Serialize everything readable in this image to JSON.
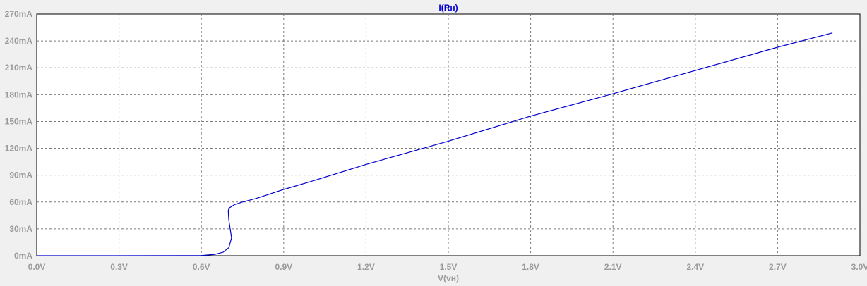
{
  "chart_data": {
    "type": "line",
    "title": "I(Rн)",
    "xlabel": "V(vн)",
    "ylabel": "",
    "xlim": [
      0.0,
      3.0
    ],
    "ylim": [
      0,
      270
    ],
    "grid": true,
    "x_ticks": [
      {
        "value": 0.0,
        "label": "0.0V"
      },
      {
        "value": 0.3,
        "label": "0.3V"
      },
      {
        "value": 0.6,
        "label": "0.6V"
      },
      {
        "value": 0.9,
        "label": "0.9V"
      },
      {
        "value": 1.2,
        "label": "1.2V"
      },
      {
        "value": 1.5,
        "label": "1.5V"
      },
      {
        "value": 1.8,
        "label": "1.8V"
      },
      {
        "value": 2.1,
        "label": "2.1V"
      },
      {
        "value": 2.4,
        "label": "2.4V"
      },
      {
        "value": 2.7,
        "label": "2.7V"
      },
      {
        "value": 3.0,
        "label": "3.0V"
      }
    ],
    "y_ticks": [
      {
        "value": 0,
        "label": "0mA"
      },
      {
        "value": 30,
        "label": "30mA"
      },
      {
        "value": 60,
        "label": "60mA"
      },
      {
        "value": 90,
        "label": "90mA"
      },
      {
        "value": 120,
        "label": "120mA"
      },
      {
        "value": 150,
        "label": "150mA"
      },
      {
        "value": 180,
        "label": "180mA"
      },
      {
        "value": 210,
        "label": "210mA"
      },
      {
        "value": 240,
        "label": "240mA"
      },
      {
        "value": 270,
        "label": "270mA"
      }
    ],
    "series": [
      {
        "color": "#0000cc",
        "x": [
          0.0,
          0.3,
          0.6,
          0.65,
          0.68,
          0.7,
          0.71,
          0.705,
          0.7,
          0.698,
          0.7,
          0.72,
          0.75,
          0.8,
          0.9,
          1.0,
          1.2,
          1.5,
          1.8,
          2.1,
          2.4,
          2.7,
          2.9
        ],
        "y": [
          0,
          0,
          0.2,
          1.5,
          4,
          9,
          20,
          30,
          40,
          50,
          53,
          57,
          60,
          64,
          74,
          83,
          102,
          128,
          156,
          181,
          207,
          233,
          249
        ]
      }
    ]
  },
  "colors": {
    "background": "#f0f0f0",
    "plot_border": "#000000",
    "grid": "#7a7a7a",
    "tick_label": "#9a9a9a",
    "title": "#0000cc",
    "xlabel": "#9a9a9a"
  }
}
